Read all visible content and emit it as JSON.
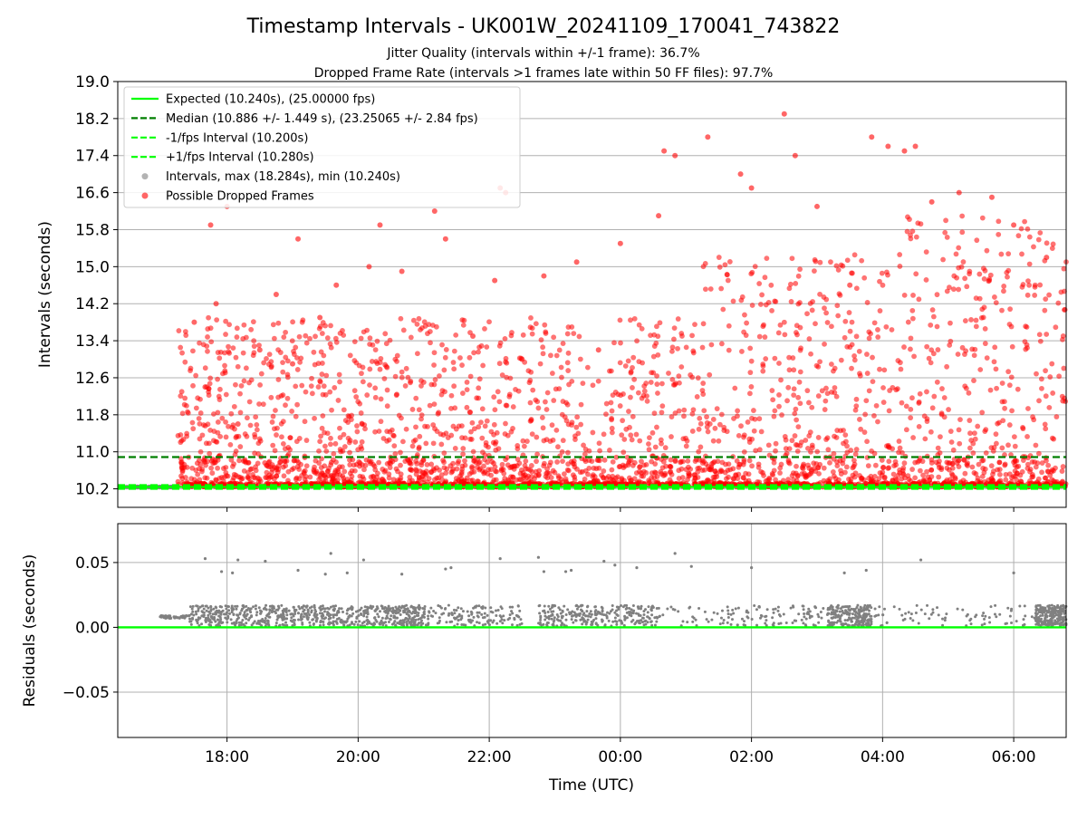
{
  "title": "Timestamp Intervals - UK001W_20241109_170041_743822",
  "subtitle_1": "Jitter Quality (intervals within +/-1 frame): 36.7%",
  "subtitle_2": "Dropped Frame Rate (intervals >1 frames late within 50 FF files): 97.7%",
  "chart_data": [
    {
      "type": "scatter",
      "panel": "intervals",
      "ylabel": "Intervals (seconds)",
      "xlabel": "",
      "x_ticks": [
        "18:00",
        "20:00",
        "22:00",
        "00:00",
        "02:00",
        "04:00",
        "06:00"
      ],
      "xlim": [
        "2024-11-09T16:20",
        "2024-11-10T06:48"
      ],
      "ylim": [
        9.8,
        19.0
      ],
      "y_ticks": [
        "10.2",
        "11.0",
        "11.8",
        "12.6",
        "13.4",
        "14.2",
        "15.0",
        "15.8",
        "16.6",
        "17.4",
        "18.2",
        "19.0"
      ],
      "grid": "horizontal",
      "legend_position": "upper-left",
      "legend": [
        "Expected (10.240s), (25.00000 fps)",
        "Median (10.886 +/- 1.449 s), (23.25065 +/- 2.84 fps)",
        "-1/fps Interval (10.200s)",
        "+1/fps Interval (10.280s)",
        "Intervals, max (18.284s), min (10.240s)",
        "Possible Dropped Frames"
      ],
      "series": [
        {
          "name": "Expected (10.240s), (25.00000 fps)",
          "kind": "hline",
          "y": 10.24,
          "color": "#00ff00",
          "style": "solid"
        },
        {
          "name": "Median (10.886 +/- 1.449 s), (23.25065 +/- 2.84 fps)",
          "kind": "hline",
          "y": 10.886,
          "color": "#007f00",
          "style": "dashed"
        },
        {
          "name": "-1/fps Interval (10.200s)",
          "kind": "hline",
          "y": 10.2,
          "color": "#00ff00",
          "style": "dashed"
        },
        {
          "name": "+1/fps Interval (10.280s)",
          "kind": "hline",
          "y": 10.28,
          "color": "#00ff00",
          "style": "dashed"
        },
        {
          "name": "Intervals, max (18.284s), min (10.240s)",
          "kind": "scatter",
          "color": "#808080",
          "max": 18.284,
          "min": 10.24
        },
        {
          "name": "Possible Dropped Frames",
          "kind": "scatter",
          "color": "#ff0000",
          "points": [
            [
              "2024-11-09T17:30",
              13.8
            ],
            [
              "2024-11-09T17:40",
              12.4
            ],
            [
              "2024-11-09T17:50",
              14.2
            ],
            [
              "2024-11-09T18:00",
              16.3
            ],
            [
              "2024-11-09T17:45",
              15.9
            ],
            [
              "2024-11-09T18:10",
              11.6
            ],
            [
              "2024-11-09T18:30",
              13.2
            ],
            [
              "2024-11-09T18:45",
              14.4
            ],
            [
              "2024-11-09T19:00",
              12.9
            ],
            [
              "2024-11-09T19:05",
              15.6
            ],
            [
              "2024-11-09T19:25",
              13.9
            ],
            [
              "2024-11-09T19:40",
              14.6
            ],
            [
              "2024-11-09T20:10",
              15.0
            ],
            [
              "2024-11-09T20:20",
              15.9
            ],
            [
              "2024-11-09T20:40",
              14.9
            ],
            [
              "2024-11-09T21:10",
              16.2
            ],
            [
              "2024-11-09T21:20",
              15.6
            ],
            [
              "2024-11-09T21:45",
              13.5
            ],
            [
              "2024-11-09T22:05",
              14.7
            ],
            [
              "2024-11-09T22:10",
              16.7
            ],
            [
              "2024-11-09T22:15",
              16.6
            ],
            [
              "2024-11-09T22:30",
              13.0
            ],
            [
              "2024-11-09T22:50",
              14.8
            ],
            [
              "2024-11-09T23:20",
              15.1
            ],
            [
              "2024-11-09T23:40",
              13.2
            ],
            [
              "2024-11-10T00:00",
              15.5
            ],
            [
              "2024-11-10T00:35",
              16.1
            ],
            [
              "2024-11-10T00:40",
              17.5
            ],
            [
              "2024-11-10T00:50",
              17.4
            ],
            [
              "2024-11-10T01:20",
              17.8
            ],
            [
              "2024-11-10T01:50",
              17.0
            ],
            [
              "2024-11-10T02:00",
              16.7
            ],
            [
              "2024-11-10T02:30",
              18.3
            ],
            [
              "2024-11-10T02:40",
              17.4
            ],
            [
              "2024-11-10T03:00",
              16.3
            ],
            [
              "2024-11-10T03:30",
              14.6
            ],
            [
              "2024-11-10T03:50",
              17.8
            ],
            [
              "2024-11-10T04:05",
              17.6
            ],
            [
              "2024-11-10T04:20",
              17.5
            ],
            [
              "2024-11-10T04:30",
              17.6
            ],
            [
              "2024-11-10T04:45",
              16.4
            ],
            [
              "2024-11-10T05:10",
              16.6
            ],
            [
              "2024-11-10T05:40",
              16.5
            ],
            [
              "2024-11-10T06:00",
              15.9
            ],
            [
              "2024-11-10T06:30",
              15.2
            ],
            [
              "2024-11-10T06:45",
              12.1
            ]
          ]
        }
      ]
    },
    {
      "type": "scatter",
      "panel": "residuals",
      "xlabel": "Time (UTC)",
      "ylabel": "Residuals (seconds)",
      "x_ticks": [
        "18:00",
        "20:00",
        "22:00",
        "00:00",
        "02:00",
        "04:00",
        "06:00"
      ],
      "xlim": [
        "2024-11-09T16:20",
        "2024-11-10T06:48"
      ],
      "ylim": [
        -0.085,
        0.08
      ],
      "y_ticks": [
        "0.05",
        "0.00",
        "−0.05"
      ],
      "grid": "both",
      "series": [
        {
          "name": "",
          "kind": "hline",
          "y": 0.0,
          "color": "#00ff00",
          "style": "solid"
        },
        {
          "name": "",
          "kind": "scatter",
          "color": "#808080",
          "points": [
            [
              "2024-11-09T17:40",
              0.053
            ],
            [
              "2024-11-09T17:55",
              0.043
            ],
            [
              "2024-11-09T18:05",
              0.042
            ],
            [
              "2024-11-09T18:10",
              0.052
            ],
            [
              "2024-11-09T18:35",
              0.051
            ],
            [
              "2024-11-09T19:05",
              0.044
            ],
            [
              "2024-11-09T19:30",
              0.041
            ],
            [
              "2024-11-09T19:35",
              0.057
            ],
            [
              "2024-11-09T19:50",
              0.042
            ],
            [
              "2024-11-09T20:05",
              0.052
            ],
            [
              "2024-11-09T20:40",
              0.041
            ],
            [
              "2024-11-09T21:20",
              0.045
            ],
            [
              "2024-11-09T21:25",
              0.046
            ],
            [
              "2024-11-09T22:10",
              0.053
            ],
            [
              "2024-11-09T22:45",
              0.054
            ],
            [
              "2024-11-09T22:50",
              0.043
            ],
            [
              "2024-11-09T23:10",
              0.043
            ],
            [
              "2024-11-09T23:15",
              0.044
            ],
            [
              "2024-11-09T23:45",
              0.051
            ],
            [
              "2024-11-09T23:55",
              0.048
            ],
            [
              "2024-11-10T00:15",
              0.046
            ],
            [
              "2024-11-10T00:50",
              0.057
            ],
            [
              "2024-11-10T01:05",
              0.047
            ],
            [
              "2024-11-10T02:00",
              0.046
            ],
            [
              "2024-11-10T03:25",
              0.042
            ],
            [
              "2024-11-10T03:45",
              0.044
            ],
            [
              "2024-11-10T04:35",
              0.052
            ],
            [
              "2024-11-10T06:00",
              0.042
            ]
          ]
        }
      ]
    }
  ]
}
